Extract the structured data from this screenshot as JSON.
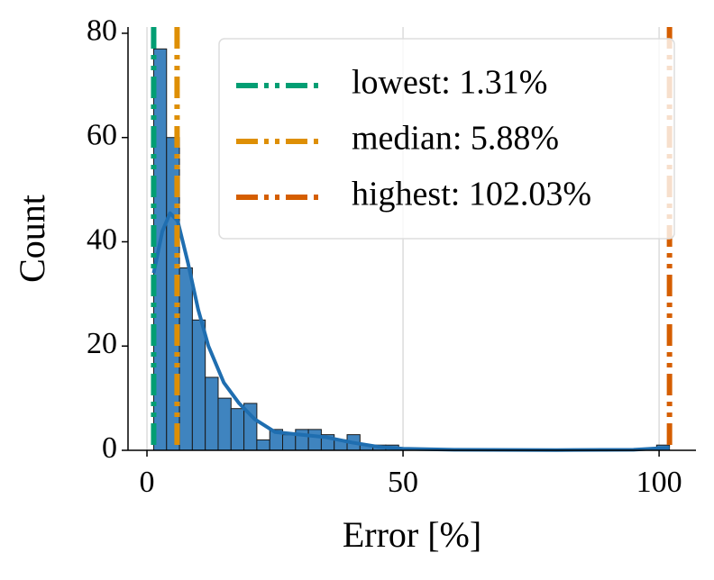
{
  "chart_data": {
    "type": "histogram",
    "x_label": "Error [%]",
    "y_label": "Count",
    "bins": [
      1.31,
      3.828,
      6.346,
      8.864,
      11.382,
      13.9,
      16.418,
      18.936,
      21.454,
      23.972,
      26.49,
      29.008,
      31.526,
      34.044,
      36.562,
      39.08,
      41.598,
      44.116,
      46.634,
      49.152,
      51.67,
      54.188,
      56.706,
      59.224,
      61.742,
      64.26,
      66.778,
      69.296,
      71.814,
      74.332,
      76.85,
      79.368,
      81.886,
      84.404,
      86.922,
      89.44,
      91.958,
      94.476,
      96.994,
      99.512,
      102.03
    ],
    "counts": [
      77,
      60,
      35,
      25,
      14,
      10,
      8,
      9,
      2,
      4,
      3,
      4,
      4,
      3,
      2,
      3,
      1,
      1,
      1,
      0,
      0,
      0,
      0,
      0,
      0,
      0,
      0,
      0,
      0,
      0,
      0,
      0,
      0,
      0,
      0,
      0,
      0,
      0,
      0,
      1
    ],
    "color": "#3f84bf",
    "kde": {
      "color": "#1f6eb0",
      "x": [
        1.31,
        3,
        4.5,
        6,
        8,
        10,
        12,
        15,
        18,
        21,
        25,
        30,
        35,
        40,
        45,
        50,
        60,
        80,
        95,
        100,
        102.03
      ],
      "y": [
        34,
        42,
        45.5,
        44,
        36,
        27,
        20,
        13,
        9,
        6,
        3.5,
        3,
        2.5,
        1.5,
        0.7,
        0.3,
        0.1,
        0.05,
        0.1,
        0.4,
        0.5
      ]
    },
    "vlines": [
      {
        "value": 1.31,
        "label": "lowest: 1.31%",
        "color": "#029e73"
      },
      {
        "value": 5.88,
        "label": "median: 5.88%",
        "color": "#de8f05"
      },
      {
        "value": 102.03,
        "label": "highest: 102.03%",
        "color": "#d55e00"
      }
    ],
    "xlim": [
      -3.7,
      107.2
    ],
    "ylim": [
      0,
      81.2
    ],
    "xticks": [
      0,
      50,
      100
    ],
    "yticks": [
      0,
      20,
      40,
      60,
      80
    ],
    "grid": true,
    "legend": "upper right"
  }
}
